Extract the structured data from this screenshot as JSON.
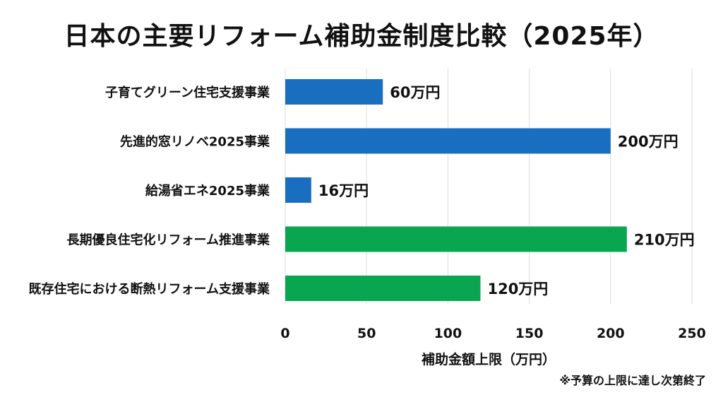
{
  "chart_data": {
    "type": "bar",
    "orientation": "horizontal",
    "title": "日本の主要リフォーム補助金制度比較（2025年）",
    "categories": [
      "子育てグリーン住宅支援事業",
      "先進的窓リノベ2025事業",
      "給湯省エネ2025事業",
      "長期優良住宅化リフォーム推進事業",
      "既存住宅における断熱リフォーム支援事業"
    ],
    "values": [
      60,
      200,
      16,
      210,
      120
    ],
    "data_labels": [
      "60万円",
      "200万円",
      "16万円",
      "210万円",
      "120万円"
    ],
    "bar_colors": [
      "#1a6ebf",
      "#1a6ebf",
      "#1a6ebf",
      "#0aa550",
      "#0aa550"
    ],
    "xlabel": "補助金額上限（万円）",
    "ylabel": "",
    "xlim": [
      0,
      250
    ],
    "xticks": [
      0,
      50,
      100,
      150,
      200,
      250
    ],
    "grid": "vertical",
    "legend": "none",
    "footnote": "※予算の上限に達し次第終了"
  }
}
